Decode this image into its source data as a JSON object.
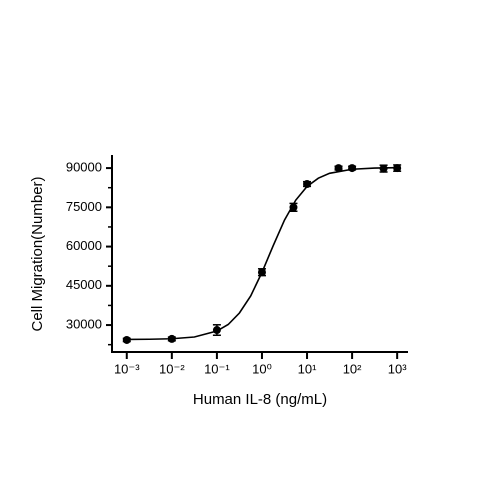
{
  "chart_data": {
    "type": "scatter",
    "x_label": "Human IL-8 (ng/mL)",
    "y_label": "Cell Migration(Number)",
    "xscale": "log",
    "xlim": [
      0.00047,
      1740
    ],
    "ylim": [
      19700,
      95000
    ],
    "xticks": [
      {
        "value": 0.001,
        "label": "10⁻³"
      },
      {
        "value": 0.01,
        "label": "10⁻²"
      },
      {
        "value": 0.1,
        "label": "10⁻¹"
      },
      {
        "value": 1,
        "label": "10⁰"
      },
      {
        "value": 10,
        "label": "10¹"
      },
      {
        "value": 100,
        "label": "10²"
      },
      {
        "value": 1000,
        "label": "10³"
      }
    ],
    "yticks": [
      30000,
      45000,
      60000,
      75000,
      90000
    ],
    "yminorticks": [
      22500,
      37500,
      52500,
      67500,
      82500
    ],
    "color": "#000000",
    "points": {
      "x": [
        0.001,
        0.01,
        0.1,
        1,
        5,
        10,
        50,
        100,
        500,
        1000
      ],
      "values": [
        24300,
        24700,
        28100,
        50200,
        75000,
        83900,
        90000,
        90000,
        89800,
        90000
      ],
      "errors": [
        600,
        700,
        2000,
        1300,
        1500,
        900,
        700,
        700,
        1300,
        1200
      ]
    },
    "curve": {
      "x": [
        0.001,
        0.00316,
        0.01,
        0.0316,
        0.1,
        0.178,
        0.316,
        0.562,
        1,
        1.78,
        3.16,
        5.62,
        10,
        17.8,
        31.6,
        100,
        316,
        1000
      ],
      "values": [
        24521,
        24575,
        24767,
        25436,
        27705,
        30213,
        34608,
        41133,
        50134,
        60402,
        70125,
        77741,
        82952,
        86132,
        87997,
        89550,
        90020,
        90147
      ]
    }
  }
}
